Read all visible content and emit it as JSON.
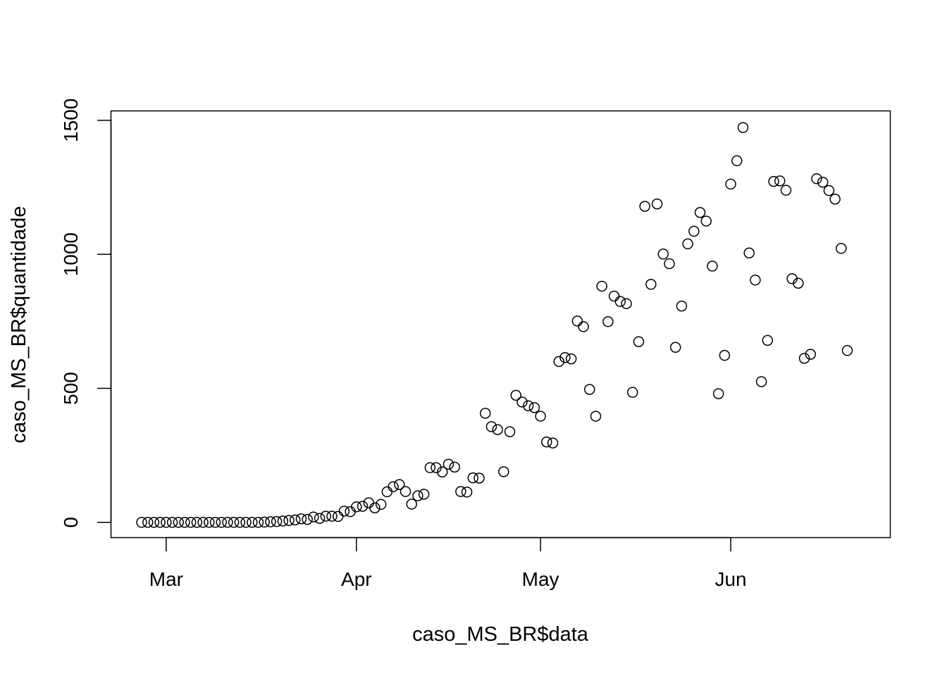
{
  "chart_data": {
    "type": "scatter",
    "xlabel": "caso_MS_BR$data",
    "ylabel": "caso_MS_BR$quantidade",
    "x_ticks": [
      {
        "date": "2020-03-01",
        "label": "Mar"
      },
      {
        "date": "2020-04-01",
        "label": "Apr"
      },
      {
        "date": "2020-05-01",
        "label": "May"
      },
      {
        "date": "2020-06-01",
        "label": "Jun"
      }
    ],
    "y_ticks": [
      0,
      500,
      1000,
      1500
    ],
    "xlim": [
      "2020-02-21",
      "2020-06-27"
    ],
    "ylim": [
      -57,
      1535
    ],
    "grid": false,
    "marker": "open-circle",
    "points": [
      {
        "x": "2020-02-26",
        "y": 0
      },
      {
        "x": "2020-02-27",
        "y": 0
      },
      {
        "x": "2020-02-28",
        "y": 0
      },
      {
        "x": "2020-02-29",
        "y": 0
      },
      {
        "x": "2020-03-01",
        "y": 0
      },
      {
        "x": "2020-03-02",
        "y": 0
      },
      {
        "x": "2020-03-03",
        "y": 0
      },
      {
        "x": "2020-03-04",
        "y": 0
      },
      {
        "x": "2020-03-05",
        "y": 0
      },
      {
        "x": "2020-03-06",
        "y": 0
      },
      {
        "x": "2020-03-07",
        "y": 0
      },
      {
        "x": "2020-03-08",
        "y": 0
      },
      {
        "x": "2020-03-09",
        "y": 0
      },
      {
        "x": "2020-03-10",
        "y": 0
      },
      {
        "x": "2020-03-11",
        "y": 0
      },
      {
        "x": "2020-03-12",
        "y": 0
      },
      {
        "x": "2020-03-13",
        "y": 0
      },
      {
        "x": "2020-03-14",
        "y": 0
      },
      {
        "x": "2020-03-15",
        "y": 0
      },
      {
        "x": "2020-03-16",
        "y": 0
      },
      {
        "x": "2020-03-17",
        "y": 1
      },
      {
        "x": "2020-03-18",
        "y": 2
      },
      {
        "x": "2020-03-19",
        "y": 3
      },
      {
        "x": "2020-03-20",
        "y": 5
      },
      {
        "x": "2020-03-21",
        "y": 7
      },
      {
        "x": "2020-03-22",
        "y": 9
      },
      {
        "x": "2020-03-23",
        "y": 13
      },
      {
        "x": "2020-03-24",
        "y": 11
      },
      {
        "x": "2020-03-25",
        "y": 20
      },
      {
        "x": "2020-03-26",
        "y": 15
      },
      {
        "x": "2020-03-27",
        "y": 23
      },
      {
        "x": "2020-03-28",
        "y": 23
      },
      {
        "x": "2020-03-29",
        "y": 22
      },
      {
        "x": "2020-03-30",
        "y": 42
      },
      {
        "x": "2020-03-31",
        "y": 40
      },
      {
        "x": "2020-04-01",
        "y": 58
      },
      {
        "x": "2020-04-02",
        "y": 60
      },
      {
        "x": "2020-04-03",
        "y": 73
      },
      {
        "x": "2020-04-04",
        "y": 54
      },
      {
        "x": "2020-04-05",
        "y": 67
      },
      {
        "x": "2020-04-06",
        "y": 114
      },
      {
        "x": "2020-04-07",
        "y": 133
      },
      {
        "x": "2020-04-08",
        "y": 141
      },
      {
        "x": "2020-04-09",
        "y": 115
      },
      {
        "x": "2020-04-10",
        "y": 68
      },
      {
        "x": "2020-04-11",
        "y": 99
      },
      {
        "x": "2020-04-12",
        "y": 105
      },
      {
        "x": "2020-04-13",
        "y": 204
      },
      {
        "x": "2020-04-14",
        "y": 204
      },
      {
        "x": "2020-04-15",
        "y": 188
      },
      {
        "x": "2020-04-16",
        "y": 217
      },
      {
        "x": "2020-04-17",
        "y": 206
      },
      {
        "x": "2020-04-18",
        "y": 115
      },
      {
        "x": "2020-04-19",
        "y": 113
      },
      {
        "x": "2020-04-20",
        "y": 166
      },
      {
        "x": "2020-04-21",
        "y": 165
      },
      {
        "x": "2020-04-22",
        "y": 407
      },
      {
        "x": "2020-04-23",
        "y": 357
      },
      {
        "x": "2020-04-24",
        "y": 346
      },
      {
        "x": "2020-04-25",
        "y": 189
      },
      {
        "x": "2020-04-26",
        "y": 338
      },
      {
        "x": "2020-04-27",
        "y": 474
      },
      {
        "x": "2020-04-28",
        "y": 449
      },
      {
        "x": "2020-04-29",
        "y": 435
      },
      {
        "x": "2020-04-30",
        "y": 428
      },
      {
        "x": "2020-05-01",
        "y": 396
      },
      {
        "x": "2020-05-02",
        "y": 300
      },
      {
        "x": "2020-05-03",
        "y": 296
      },
      {
        "x": "2020-05-04",
        "y": 600
      },
      {
        "x": "2020-05-05",
        "y": 615
      },
      {
        "x": "2020-05-06",
        "y": 610
      },
      {
        "x": "2020-05-07",
        "y": 751
      },
      {
        "x": "2020-05-08",
        "y": 730
      },
      {
        "x": "2020-05-09",
        "y": 496
      },
      {
        "x": "2020-05-10",
        "y": 396
      },
      {
        "x": "2020-05-11",
        "y": 881
      },
      {
        "x": "2020-05-12",
        "y": 749
      },
      {
        "x": "2020-05-13",
        "y": 844
      },
      {
        "x": "2020-05-14",
        "y": 824
      },
      {
        "x": "2020-05-15",
        "y": 816
      },
      {
        "x": "2020-05-16",
        "y": 485
      },
      {
        "x": "2020-05-17",
        "y": 674
      },
      {
        "x": "2020-05-18",
        "y": 1179
      },
      {
        "x": "2020-05-19",
        "y": 888
      },
      {
        "x": "2020-05-20",
        "y": 1188
      },
      {
        "x": "2020-05-21",
        "y": 1001
      },
      {
        "x": "2020-05-22",
        "y": 965
      },
      {
        "x": "2020-05-23",
        "y": 653
      },
      {
        "x": "2020-05-24",
        "y": 807
      },
      {
        "x": "2020-05-25",
        "y": 1039
      },
      {
        "x": "2020-05-26",
        "y": 1086
      },
      {
        "x": "2020-05-27",
        "y": 1156
      },
      {
        "x": "2020-05-28",
        "y": 1124
      },
      {
        "x": "2020-05-29",
        "y": 956
      },
      {
        "x": "2020-05-30",
        "y": 480
      },
      {
        "x": "2020-05-31",
        "y": 623
      },
      {
        "x": "2020-06-01",
        "y": 1262
      },
      {
        "x": "2020-06-02",
        "y": 1349
      },
      {
        "x": "2020-06-03",
        "y": 1473
      },
      {
        "x": "2020-06-04",
        "y": 1005
      },
      {
        "x": "2020-06-05",
        "y": 904
      },
      {
        "x": "2020-06-06",
        "y": 525
      },
      {
        "x": "2020-06-07",
        "y": 679
      },
      {
        "x": "2020-06-08",
        "y": 1272
      },
      {
        "x": "2020-06-09",
        "y": 1274
      },
      {
        "x": "2020-06-10",
        "y": 1239
      },
      {
        "x": "2020-06-11",
        "y": 909
      },
      {
        "x": "2020-06-12",
        "y": 892
      },
      {
        "x": "2020-06-13",
        "y": 612
      },
      {
        "x": "2020-06-14",
        "y": 627
      },
      {
        "x": "2020-06-15",
        "y": 1282
      },
      {
        "x": "2020-06-16",
        "y": 1269
      },
      {
        "x": "2020-06-17",
        "y": 1238
      },
      {
        "x": "2020-06-18",
        "y": 1206
      },
      {
        "x": "2020-06-19",
        "y": 1022
      },
      {
        "x": "2020-06-20",
        "y": 641
      }
    ]
  }
}
